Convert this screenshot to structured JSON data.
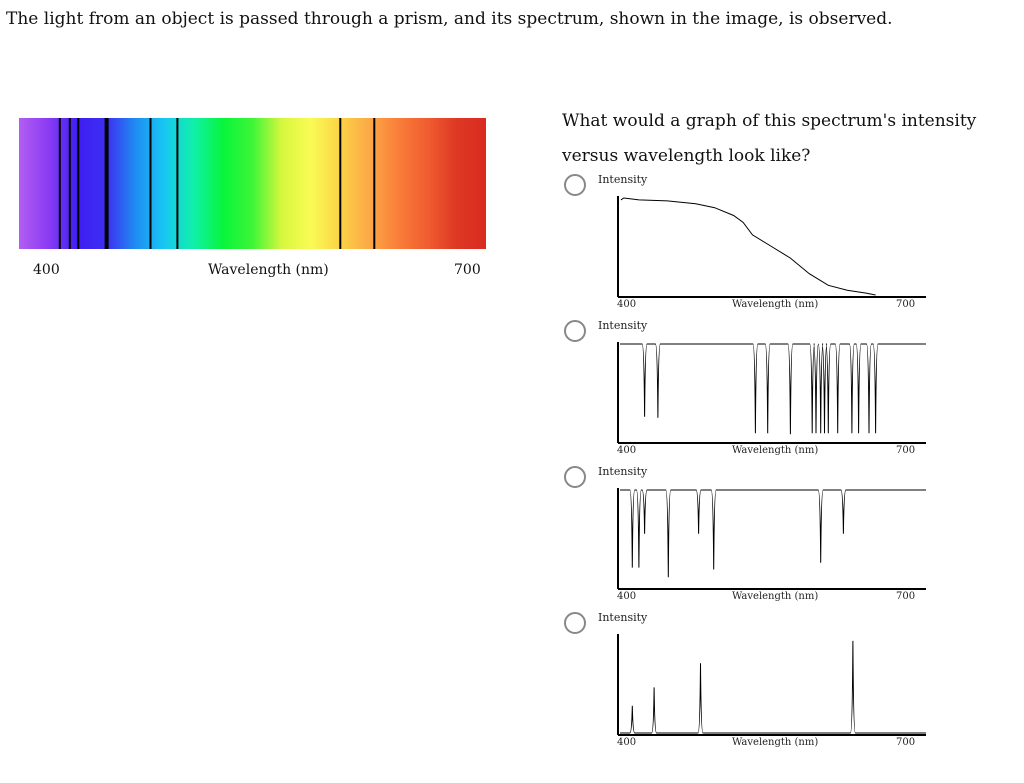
{
  "question": {
    "intro": "The light from an object is passed through a prism, and its spectrum, shown in the image, is observed.",
    "prompt": "What would a graph of this spectrum's intensity versus wavelength look like?"
  },
  "spectrum_image": {
    "x_min_label": "400",
    "x_max_label": "700",
    "x_label": "Wavelength (nm)",
    "gradient_colors": [
      "#b25df2",
      "#8b3cf3",
      "#3f1ef2",
      "#3d2ff2",
      "#1f8df2",
      "#17c8f2",
      "#10f0a8",
      "#08f53b",
      "#3ef538",
      "#d6f73d",
      "#fafb55",
      "#fbd346",
      "#fca847",
      "#f97e3a",
      "#f05c30",
      "#de3824",
      "#d92b20"
    ],
    "line_color": "#000000"
  },
  "options": [
    {
      "id": "option-a",
      "intensity_label": "Intensity",
      "x_label": "Wavelength (nm)",
      "x_min_label": "400",
      "x_max_label": "700"
    },
    {
      "id": "option-b",
      "intensity_label": "Intensity",
      "x_label": "Wavelength (nm)",
      "x_min_label": "400",
      "x_max_label": "700"
    },
    {
      "id": "option-c",
      "intensity_label": "Intensity",
      "x_label": "Wavelength (nm)",
      "x_min_label": "400",
      "x_max_label": "700"
    },
    {
      "id": "option-d",
      "intensity_label": "Intensity",
      "x_label": "Wavelength (nm)",
      "x_min_label": "400",
      "x_max_label": "700"
    }
  ],
  "chart_data": [
    {
      "type": "spectrum",
      "xlabel": "Wavelength (nm)",
      "xlim": [
        400,
        700
      ],
      "absorption_lines_nm": [
        414,
        421,
        427,
        447,
        478,
        497,
        612,
        636
      ]
    },
    {
      "type": "line",
      "ylabel": "Intensity",
      "xlabel": "Wavelength (nm)",
      "xlim": [
        400,
        700
      ],
      "x": [
        401,
        404,
        420,
        450,
        480,
        500,
        520,
        530,
        540,
        560,
        580,
        600,
        620,
        640,
        660,
        670
      ],
      "y": [
        0.98,
        1.0,
        0.98,
        0.97,
        0.94,
        0.9,
        0.82,
        0.75,
        0.62,
        0.5,
        0.38,
        0.22,
        0.1,
        0.05,
        0.02,
        0.0
      ]
    },
    {
      "type": "line",
      "ylabel": "Intensity",
      "xlabel": "Wavelength (nm)",
      "xlim": [
        400,
        700
      ],
      "baseline": 1.0,
      "absorption_lines_nm": [
        426,
        440,
        543,
        556,
        580,
        603,
        607,
        612,
        616,
        620,
        630,
        645,
        652,
        663,
        670
      ],
      "absorption_depths": [
        0.75,
        0.76,
        0.92,
        0.92,
        0.93,
        0.92,
        0.92,
        0.92,
        0.92,
        0.92,
        0.92,
        0.92,
        0.92,
        0.92,
        0.92
      ]
    },
    {
      "type": "line",
      "ylabel": "Intensity",
      "xlabel": "Wavelength (nm)",
      "xlim": [
        400,
        700
      ],
      "baseline": 1.0,
      "absorption_lines_nm": [
        413,
        420,
        426,
        451,
        483,
        499,
        612,
        636
      ],
      "absorption_depths": [
        0.8,
        0.8,
        0.45,
        0.9,
        0.45,
        0.82,
        0.75,
        0.45
      ]
    },
    {
      "type": "line",
      "ylabel": "Intensity",
      "xlabel": "Wavelength (nm)",
      "xlim": [
        400,
        700
      ],
      "baseline": 0.0,
      "emission_lines_nm": [
        413,
        436,
        485,
        646
      ],
      "emission_heights": [
        0.28,
        0.47,
        0.72,
        0.95
      ]
    }
  ]
}
